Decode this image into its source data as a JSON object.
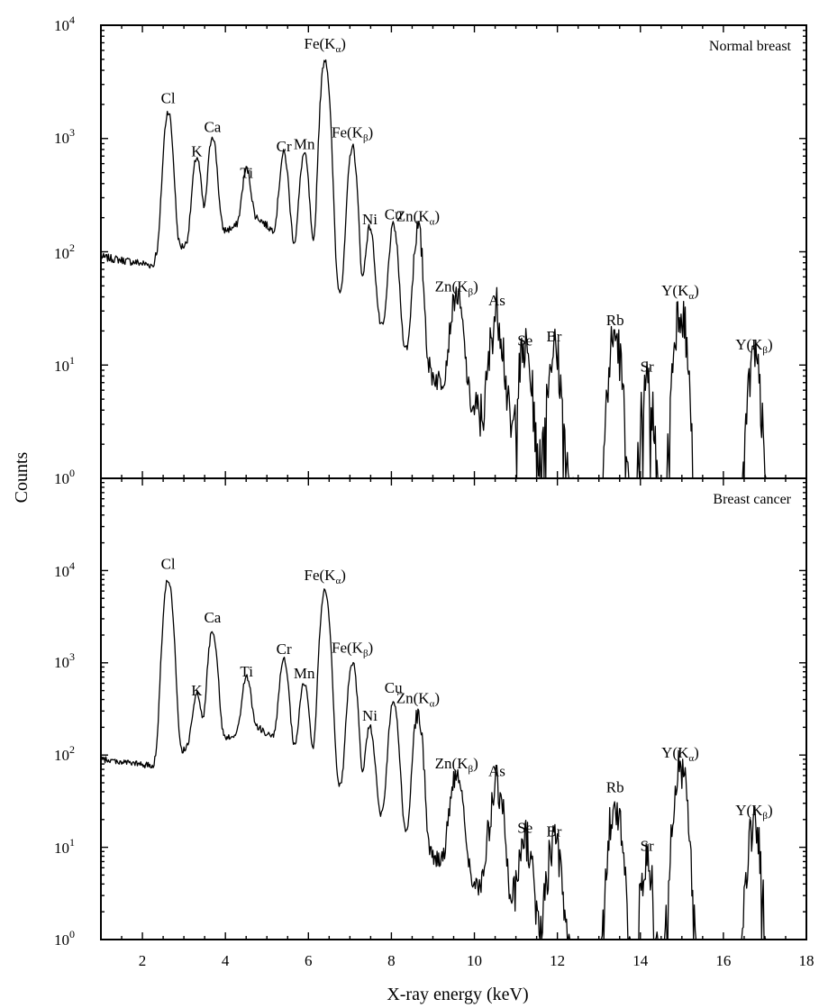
{
  "chart_data": {
    "type": "line",
    "xlabel": "X-ray energy (keV)",
    "ylabel": "Counts",
    "xlim": [
      1,
      18
    ],
    "x_ticks": [
      2,
      4,
      6,
      8,
      10,
      12,
      14,
      16,
      18
    ],
    "x_tick_labels": [
      "2",
      "4",
      "6",
      "8",
      "10",
      "12",
      "14",
      "16",
      "18"
    ],
    "y_scale": "log",
    "grid": false,
    "legend": "none",
    "line_color": "#000000",
    "panels": [
      {
        "title": "Normal breast",
        "ylim": [
          1,
          10000
        ],
        "y_tick_labels": [
          "10^0",
          "10^1",
          "10^2",
          "10^3",
          "10^4"
        ],
        "peaks": [
          {
            "label": "Cl",
            "sub": "",
            "x": 2.62,
            "y": 1650
          },
          {
            "label": "K",
            "sub": "",
            "x": 3.31,
            "y": 560
          },
          {
            "label": "Ca",
            "sub": "",
            "x": 3.69,
            "y": 920
          },
          {
            "label": "Ti",
            "sub": "",
            "x": 4.51,
            "y": 360
          },
          {
            "label": "Cr",
            "sub": "",
            "x": 5.41,
            "y": 620
          },
          {
            "label": "Mn",
            "sub": "",
            "x": 5.9,
            "y": 650
          },
          {
            "label": "Fe(K",
            "sub": "α",
            "x": 6.4,
            "y": 5000
          },
          {
            "label": "Fe(K",
            "sub": "β",
            "x": 7.06,
            "y": 820
          },
          {
            "label": "Ni",
            "sub": "",
            "x": 7.48,
            "y": 140
          },
          {
            "label": "Cu",
            "sub": "",
            "x": 8.05,
            "y": 155
          },
          {
            "label": "Zn(K",
            "sub": "α",
            "x": 8.64,
            "y": 150
          },
          {
            "label": "Zn(K",
            "sub": "β",
            "x": 9.57,
            "y": 36
          },
          {
            "label": "As",
            "sub": "",
            "x": 10.54,
            "y": 27
          },
          {
            "label": "Se",
            "sub": "",
            "x": 11.22,
            "y": 12
          },
          {
            "label": "Br",
            "sub": "",
            "x": 11.92,
            "y": 13
          },
          {
            "label": "Rb",
            "sub": "",
            "x": 13.39,
            "y": 18
          },
          {
            "label": "Sr",
            "sub": "",
            "x": 14.16,
            "y": 7
          },
          {
            "label": "Y(K",
            "sub": "α",
            "x": 14.96,
            "y": 33
          },
          {
            "label": "Y(K",
            "sub": "β",
            "x": 16.74,
            "y": 11
          }
        ]
      },
      {
        "title": "Breast cancer",
        "ylim": [
          1,
          100000
        ],
        "y_tick_labels": [
          "10^0",
          "10^1",
          "10^2",
          "10^3",
          "10^4"
        ],
        "peaks": [
          {
            "label": "Cl",
            "sub": "",
            "x": 2.62,
            "y": 8000
          },
          {
            "label": "K",
            "sub": "",
            "x": 3.31,
            "y": 340
          },
          {
            "label": "Ca",
            "sub": "",
            "x": 3.69,
            "y": 2100
          },
          {
            "label": "Ti",
            "sub": "",
            "x": 4.51,
            "y": 540
          },
          {
            "label": "Cr",
            "sub": "",
            "x": 5.41,
            "y": 950
          },
          {
            "label": "Mn",
            "sub": "",
            "x": 5.9,
            "y": 520
          },
          {
            "label": "Fe(K",
            "sub": "α",
            "x": 6.4,
            "y": 6000
          },
          {
            "label": "Fe(K",
            "sub": "β",
            "x": 7.06,
            "y": 980
          },
          {
            "label": "Ni",
            "sub": "",
            "x": 7.48,
            "y": 180
          },
          {
            "label": "Cu",
            "sub": "",
            "x": 8.05,
            "y": 360
          },
          {
            "label": "Zn(K",
            "sub": "α",
            "x": 8.64,
            "y": 280
          },
          {
            "label": "Zn(K",
            "sub": "β",
            "x": 9.57,
            "y": 55
          },
          {
            "label": "As",
            "sub": "",
            "x": 10.54,
            "y": 45
          },
          {
            "label": "Se",
            "sub": "",
            "x": 11.22,
            "y": 11
          },
          {
            "label": "Br",
            "sub": "",
            "x": 11.92,
            "y": 10
          },
          {
            "label": "Rb",
            "sub": "",
            "x": 13.39,
            "y": 30
          },
          {
            "label": "Sr",
            "sub": "",
            "x": 14.16,
            "y": 7
          },
          {
            "label": "Y(K",
            "sub": "α",
            "x": 14.96,
            "y": 72
          },
          {
            "label": "Y(K",
            "sub": "β",
            "x": 16.74,
            "y": 17
          }
        ]
      }
    ]
  }
}
